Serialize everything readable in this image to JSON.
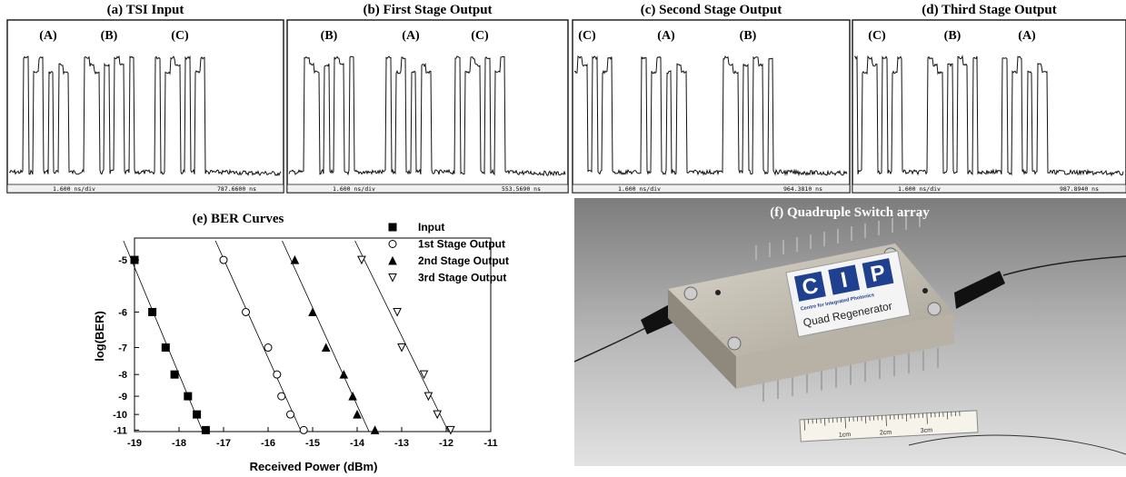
{
  "scope_panels": [
    {
      "title": "(a) TSI Input",
      "channels": [
        "(A)",
        "(B)",
        "(C)"
      ],
      "scale": "1.600 ns/div",
      "time": "787.6600 ns"
    },
    {
      "title": "(b) First Stage Output",
      "channels": [
        "(B)",
        "(A)",
        "(C)"
      ],
      "scale": "1.600 ns/div",
      "time": "553.5690 ns"
    },
    {
      "title": "(c) Second Stage Output",
      "channels": [
        "(C)",
        "(A)",
        "(B)"
      ],
      "scale": "1.600 ns/div",
      "time": "964.3810 ns"
    },
    {
      "title": "(d) Third Stage Output",
      "channels": [
        "(C)",
        "(B)",
        "(A)"
      ],
      "scale": "1.600 ns/div",
      "time": "987.8940 ns"
    }
  ],
  "chart_data": {
    "type": "scatter",
    "title": "(e) BER Curves",
    "x_label": "Received Power (dBm)",
    "y_label": "log(BER)",
    "xlim": [
      -19,
      -11
    ],
    "xticks": [
      -19,
      -18,
      -17,
      -16,
      -15,
      -14,
      -13,
      -12,
      -11
    ],
    "ylim": [
      -11.1,
      -4.7
    ],
    "yticks": [
      -5,
      -6,
      -7,
      -8,
      -9,
      -10,
      -11
    ],
    "yscale": "ber",
    "legend": "upper right",
    "fit_lines": true,
    "series": [
      {
        "name": "Input",
        "marker": "square",
        "filled": true,
        "color": "#000000",
        "x": [
          -19.0,
          -18.6,
          -18.3,
          -18.1,
          -17.8,
          -17.6,
          -17.4
        ],
        "values": [
          -5,
          -6,
          -7,
          -8,
          -9,
          -10,
          -11
        ]
      },
      {
        "name": "1st Stage Output",
        "marker": "circle",
        "filled": false,
        "color": "#000000",
        "x": [
          -17.0,
          -16.5,
          -16.0,
          -15.8,
          -15.7,
          -15.5,
          -15.2
        ],
        "values": [
          -5,
          -6,
          -7,
          -8,
          -9,
          -10,
          -11
        ]
      },
      {
        "name": "2nd Stage Output",
        "marker": "triangle-up",
        "filled": true,
        "color": "#000000",
        "x": [
          -15.4,
          -15.0,
          -14.7,
          -14.3,
          -14.1,
          -14.0,
          -13.6
        ],
        "values": [
          -5,
          -6,
          -7,
          -8,
          -9,
          -10,
          -11
        ]
      },
      {
        "name": "3rd Stage Output",
        "marker": "triangle-down",
        "filled": false,
        "color": "#000000",
        "x": [
          -13.9,
          -13.1,
          -13.0,
          -12.5,
          -12.4,
          -12.2,
          -11.9
        ],
        "values": [
          -5,
          -6,
          -7,
          -8,
          -9,
          -10,
          -11
        ]
      }
    ]
  },
  "photo": {
    "title": "(f) Quadruple Switch array",
    "logo": [
      "C",
      "I",
      "P"
    ],
    "logo_caption": "Centre for Integrated Photonics",
    "product": "Quad Regenerator",
    "ruler": [
      "1cm",
      "2cm",
      "3cm"
    ]
  }
}
